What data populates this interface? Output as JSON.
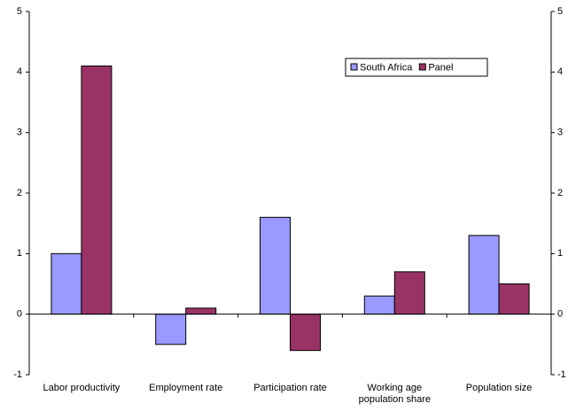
{
  "chart_data": {
    "type": "bar",
    "categories": [
      "Labor productivity",
      "Employment rate",
      "Participation rate",
      "Working age population share",
      "Population size"
    ],
    "series": [
      {
        "name": "South Africa",
        "color": "#9999ff",
        "values": [
          1,
          -0.5,
          1.6,
          0.3,
          1.3
        ]
      },
      {
        "name": "Panel",
        "color": "#993366",
        "values": [
          4.1,
          0.1,
          -0.6,
          0.7,
          0.5
        ]
      }
    ],
    "ylim": [
      -1,
      5
    ],
    "yticks": [
      -1,
      0,
      1,
      2,
      3,
      4,
      5
    ],
    "y2lim": [
      -1,
      5
    ],
    "y2ticks": [
      -1,
      0,
      1,
      2,
      3,
      4,
      5
    ],
    "grid": false,
    "legend": "upper right"
  }
}
